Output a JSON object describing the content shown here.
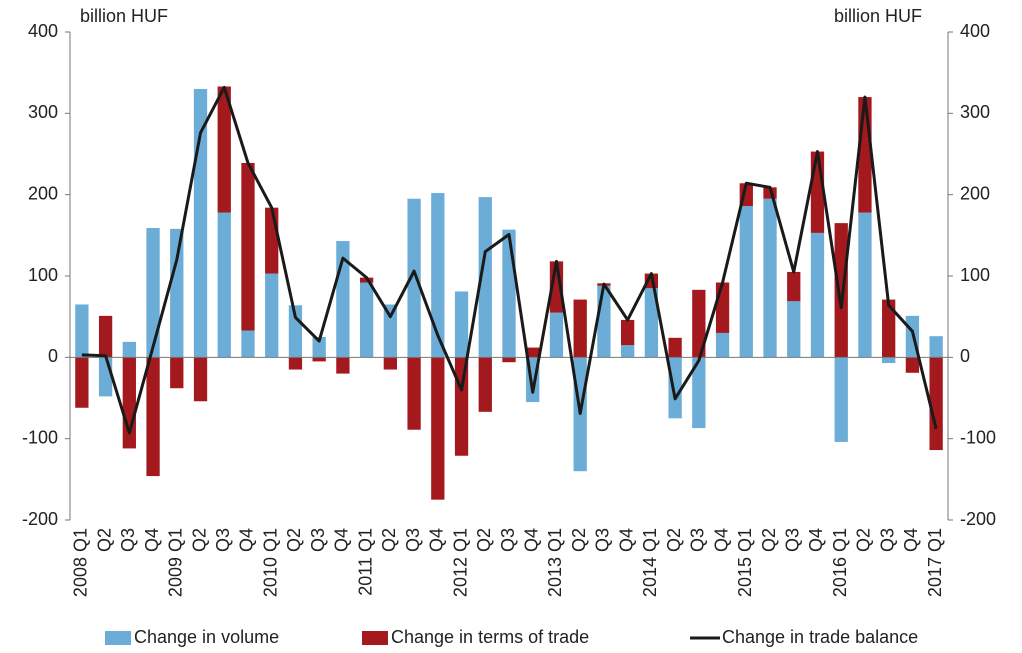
{
  "chart_data": {
    "type": "bar",
    "stacked": true,
    "y_label": "billion HUF",
    "y2_label": "billion HUF",
    "categories": [
      "2008 Q1",
      "Q2",
      "Q3",
      "Q4",
      "2009 Q1",
      "Q2",
      "Q3",
      "Q4",
      "2010 Q1",
      "Q2",
      "Q3",
      "Q4",
      "2011 Q1",
      "Q2",
      "Q3",
      "Q4",
      "2012 Q1",
      "Q2",
      "Q3",
      "Q4",
      "2013 Q1",
      "Q2",
      "Q3",
      "Q4",
      "2014 Q1",
      "Q2",
      "Q3",
      "Q4",
      "2015 Q1",
      "Q2",
      "Q3",
      "Q4",
      "2016 Q1",
      "Q2",
      "Q3",
      "Q4",
      "2017 Q1"
    ],
    "series": [
      {
        "name": "Change in volume",
        "type": "bar",
        "color": "#6badd6",
        "values": [
          65,
          -48,
          19,
          159,
          158,
          330,
          178,
          33,
          103,
          64,
          25,
          143,
          92,
          65,
          195,
          202,
          81,
          197,
          157,
          -55,
          55,
          -140,
          88,
          15,
          85,
          -75,
          -87,
          30,
          186,
          195,
          69,
          153,
          -104,
          178,
          -7,
          51,
          26
        ]
      },
      {
        "name": "Change in terms of trade",
        "type": "bar",
        "color": "#a3191d",
        "values": [
          -62,
          51,
          -112,
          -146,
          -38,
          -54,
          155,
          206,
          81,
          -15,
          -5,
          -20,
          6,
          -15,
          -89,
          -175,
          -121,
          -67,
          -6,
          12,
          63,
          71,
          3,
          31,
          18,
          24,
          83,
          62,
          28,
          14,
          36,
          100,
          165,
          142,
          71,
          -19,
          -114
        ]
      },
      {
        "name": "Change in trade balance",
        "type": "line",
        "color": "#1a1a1a",
        "values": [
          3,
          2,
          -93,
          13,
          120,
          276,
          332,
          239,
          184,
          49,
          20,
          122,
          98,
          50,
          106,
          27,
          -40,
          130,
          151,
          -43,
          118,
          -69,
          90,
          46,
          103,
          -51,
          -4,
          92,
          214,
          209,
          105,
          253,
          61,
          320,
          64,
          32,
          -88
        ]
      }
    ],
    "ylim": [
      -200,
      400
    ],
    "yticks": [
      -200,
      -100,
      0,
      100,
      200,
      300,
      400
    ],
    "y2lim": [
      -200,
      400
    ],
    "y2ticks": [
      -200,
      -100,
      0,
      100,
      200,
      300,
      400
    ],
    "legend": "bottom"
  }
}
